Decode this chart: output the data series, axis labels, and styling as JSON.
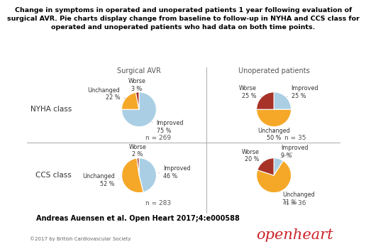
{
  "title": "Change in symptoms in operated and unoperated patients 1 year following evaluation of\nsurgical AVR. Pie charts display change from baseline to follow-up in NYHA and CCS class for\noperated and unoperated patients who had data on both time points.",
  "col_labels": [
    "Surgical AVR",
    "Unoperated patients"
  ],
  "row_labels": [
    "NYHA class",
    "CCS class"
  ],
  "citation": "Andreas Auensen et al. Open Heart 2017;4:e000588",
  "copyright": "©2017 by British Cardiovascular Society",
  "openheart_text": "openheart",
  "openheart_color": "#cc2027",
  "charts": [
    {
      "id": "nyha_surgical",
      "slices": [
        {
          "label": "Improved",
          "pct": 75,
          "color": "#aacfe4"
        },
        {
          "label": "Unchanged",
          "pct": 22,
          "color": "#f5a828"
        },
        {
          "label": "Worse",
          "pct": 3,
          "color": "#a63228"
        }
      ],
      "n": "n = 269",
      "startangle": 90,
      "counterclock": false
    },
    {
      "id": "nyha_unoperated",
      "slices": [
        {
          "label": "Improved",
          "pct": 25,
          "color": "#aacfe4"
        },
        {
          "label": "Unchanged",
          "pct": 50,
          "color": "#f5a828"
        },
        {
          "label": "Worse",
          "pct": 25,
          "color": "#a63228"
        }
      ],
      "n": "n = 35",
      "startangle": 90,
      "counterclock": false
    },
    {
      "id": "ccs_surgical",
      "slices": [
        {
          "label": "Improved",
          "pct": 46,
          "color": "#aacfe4"
        },
        {
          "label": "Unchanged",
          "pct": 52,
          "color": "#f5a828"
        },
        {
          "label": "Worse",
          "pct": 2,
          "color": "#a63228"
        }
      ],
      "n": "n = 283",
      "startangle": 90,
      "counterclock": false
    },
    {
      "id": "ccs_unoperated",
      "slices": [
        {
          "label": "Improved",
          "pct": 9,
          "color": "#aacfe4"
        },
        {
          "label": "Unchanged",
          "pct": 71,
          "color": "#f5a828"
        },
        {
          "label": "Worse",
          "pct": 20,
          "color": "#a63228"
        }
      ],
      "n": "n = 36",
      "startangle": 90,
      "counterclock": false
    }
  ],
  "background_color": "#ffffff",
  "divider_color": "#aaaaaa",
  "label_fontsize": 5.8,
  "row_label_fontsize": 7.5,
  "col_label_fontsize": 7.0,
  "n_fontsize": 6.5,
  "title_fontsize": 6.8,
  "citation_fontsize": 7.0
}
